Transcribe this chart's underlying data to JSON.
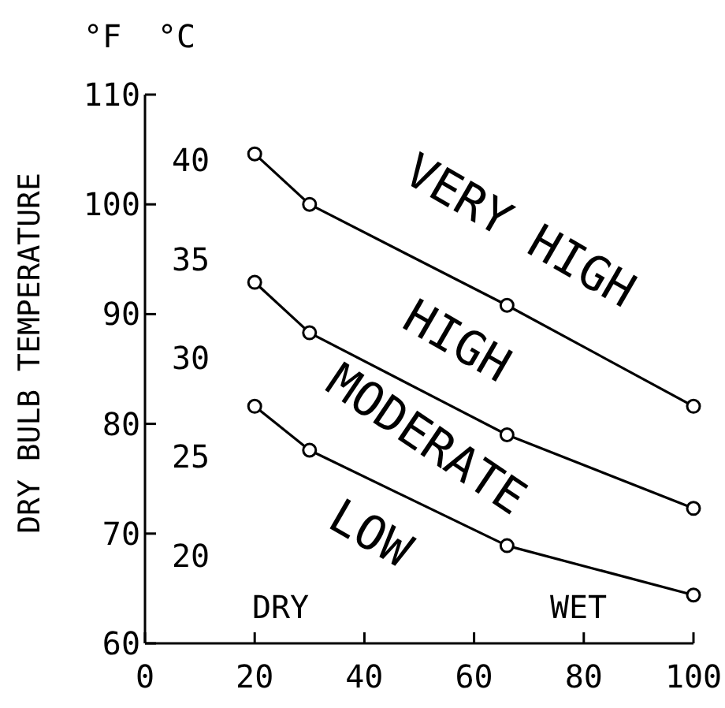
{
  "chart_data": {
    "type": "line",
    "ylabel": "DRY BULB TEMPERATURE",
    "y2label": "°C",
    "x": [
      20,
      30,
      66,
      100
    ],
    "series": [
      {
        "color": "#000000",
        "values": [
          104.6,
          100,
          90.8,
          81.6
        ]
      },
      {
        "color": "#000000",
        "values": [
          92.9,
          88.3,
          79,
          72.3
        ]
      },
      {
        "color": "#000000",
        "values": [
          81.6,
          77.6,
          68.9,
          64.4
        ]
      }
    ],
    "xlim": [
      0,
      100
    ],
    "xticks": [
      0,
      20,
      40,
      60,
      80,
      100
    ],
    "ylim": [
      60,
      110
    ],
    "yticks": [
      60,
      70,
      80,
      90,
      100,
      110
    ],
    "y2lim": [
      15.56,
      43.33
    ],
    "y2ticks": [
      20,
      25,
      30,
      35,
      40
    ],
    "marker": "circle",
    "line_style": "solid",
    "annotations": [
      "°F",
      "VERY HIGH",
      "HIGH",
      "MODERATE",
      "LOW",
      "DRY",
      "WET"
    ]
  }
}
